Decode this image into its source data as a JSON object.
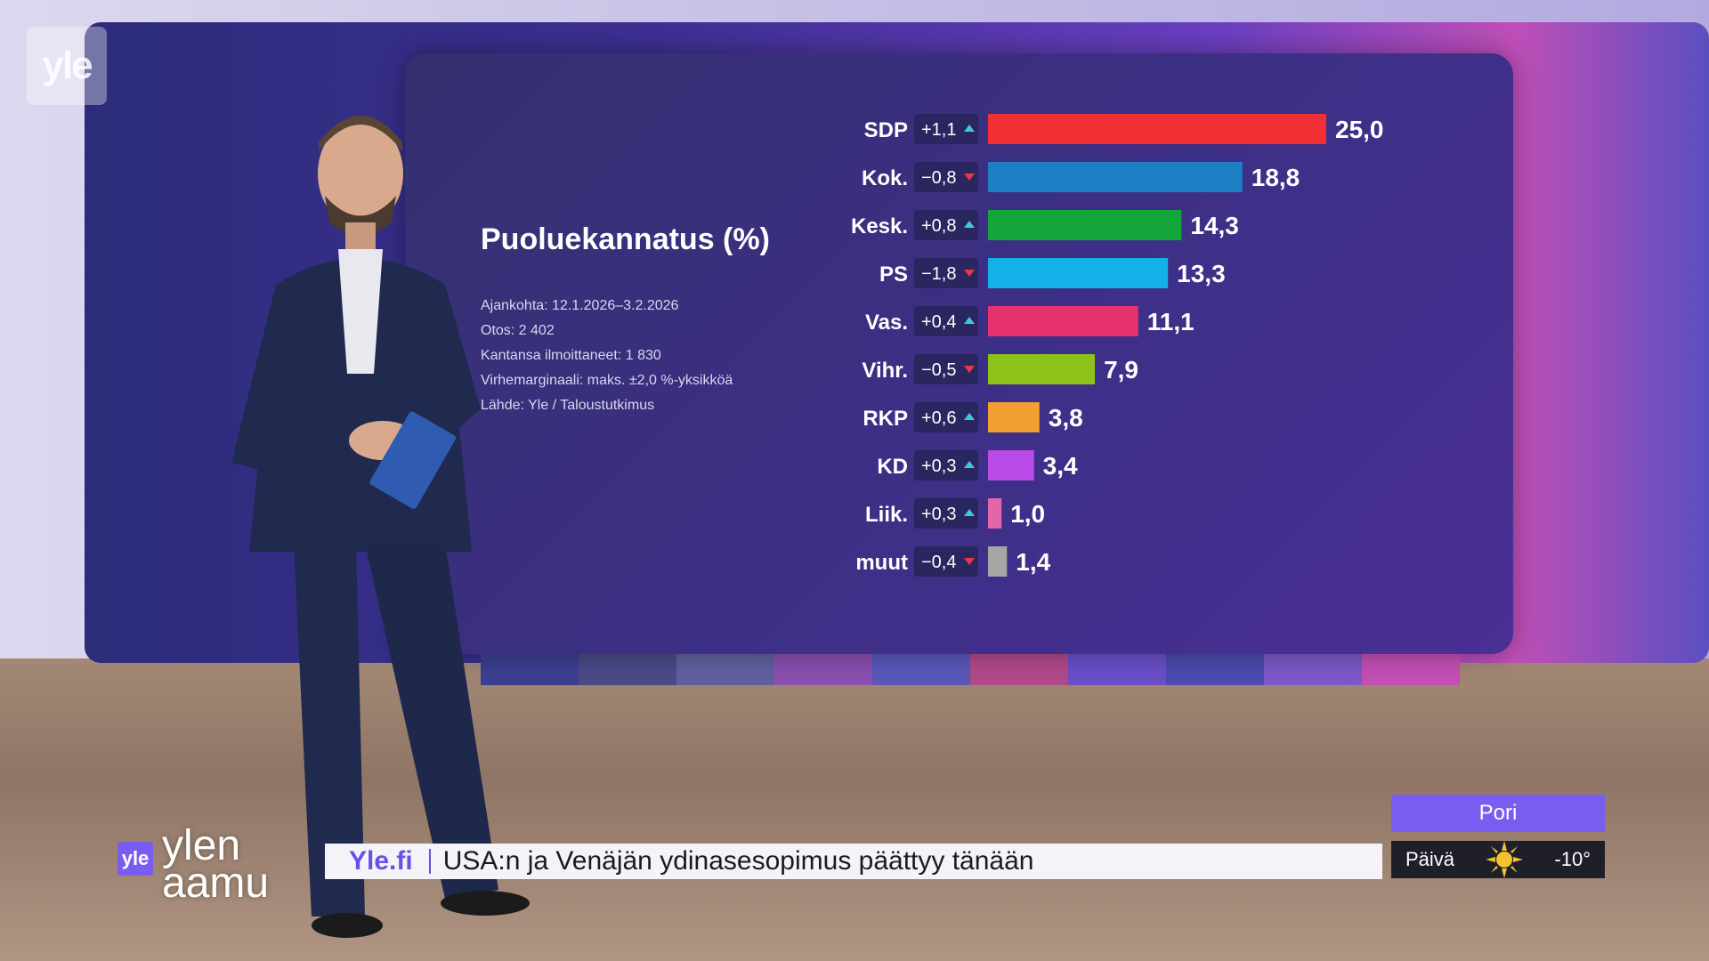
{
  "channel_logo": "yle",
  "chart_title": "Puoluekannatus (%)",
  "chart_meta": [
    "Ajankohta: 12.1.2026–3.2.2026",
    "Otos: 2 402",
    "Kantansa ilmoittaneet: 1 830",
    "Virhemarginaali: maks. ±2,0 %-yksikköä",
    "Lähde: Yle / Taloustutkimus"
  ],
  "chart_data": {
    "type": "bar",
    "orientation": "horizontal",
    "title": "Puoluekannatus (%)",
    "categories": [
      "SDP",
      "Kok.",
      "Kesk.",
      "PS",
      "Vas.",
      "Vihr.",
      "RKP",
      "KD",
      "Liik.",
      "muut"
    ],
    "values": [
      25.0,
      18.8,
      14.3,
      13.3,
      11.1,
      7.9,
      3.8,
      3.4,
      1.0,
      1.4
    ],
    "value_labels": [
      "25,0",
      "18,8",
      "14,3",
      "13,3",
      "11,1",
      "7,9",
      "3,8",
      "3,4",
      "1,0",
      "1,4"
    ],
    "changes": [
      1.1,
      -0.8,
      0.8,
      -1.8,
      0.4,
      -0.5,
      0.6,
      0.3,
      0.3,
      -0.4
    ],
    "change_labels": [
      "+1,1",
      "−0,8",
      "+0,8",
      "−1,8",
      "+0,4",
      "−0,5",
      "+0,6",
      "+0,3",
      "+0,3",
      "−0,4"
    ],
    "colors": [
      "#f03034",
      "#1e7fc4",
      "#13a43a",
      "#12b2e8",
      "#e6336f",
      "#8cc21a",
      "#f0a030",
      "#b94ce8",
      "#e266a8",
      "#a6a6a6"
    ],
    "up_color": "#3fc8d8",
    "down_color": "#e8374a",
    "xlim": [
      0,
      25
    ]
  },
  "show_logo": {
    "badge": "yle",
    "line1": "ylen",
    "line2": "aamu"
  },
  "ticker": {
    "source": "Yle.fi",
    "headline": "USA:n ja Venäjän ydinasesopimus päättyy tänään"
  },
  "weather": {
    "city": "Pori",
    "period": "Päivä",
    "icon": "sun-icon",
    "temperature": "-10°"
  },
  "colors": {
    "accent": "#7b5cf0",
    "panel": "#3a2f82"
  }
}
